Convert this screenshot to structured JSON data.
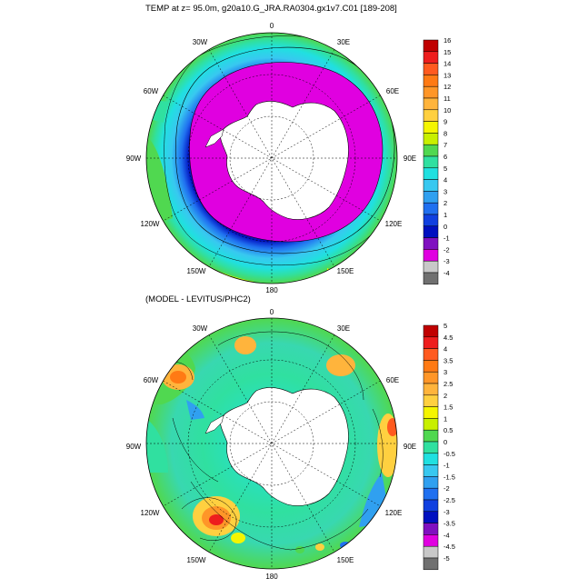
{
  "top_panel": {
    "title": "TEMP at z=  95.0m, g20a10.G_JRA.RA0304.gx1v7.C01 [189-208]",
    "colorbar": {
      "labels": [
        "16",
        "15",
        "14",
        "13",
        "12",
        "11",
        "10",
        "9",
        "8",
        "7",
        "6",
        "5",
        "4",
        "3",
        "2",
        "1",
        "0",
        "-1",
        "-2",
        "-3",
        "-4"
      ],
      "colors": [
        "#c00000",
        "#ee1d1d",
        "#ff5a1f",
        "#ff7a14",
        "#ff9628",
        "#ffb43c",
        "#ffd040",
        "#f5f500",
        "#c8f000",
        "#50d850",
        "#30e0a0",
        "#20e0e0",
        "#38c8f0",
        "#30a0f0",
        "#2070f0",
        "#1040e0",
        "#0010c0",
        "#8010c0",
        "#e000e0",
        "#c8c8c8",
        "#707070"
      ]
    }
  },
  "bottom_panel": {
    "title": "(MODEL - LEVITUS/PHC2)",
    "colorbar": {
      "labels": [
        "5",
        "4.5",
        "4",
        "3.5",
        "3",
        "2.5",
        "2",
        "1.5",
        "1",
        "0.5",
        "0",
        "-0.5",
        "-1",
        "-1.5",
        "-2",
        "-2.5",
        "-3",
        "-3.5",
        "-4",
        "-4.5",
        "-5"
      ],
      "colors": [
        "#c00000",
        "#ee1d1d",
        "#ff5a1f",
        "#ff7a14",
        "#ff9628",
        "#ffb43c",
        "#ffd040",
        "#f5f500",
        "#c8f000",
        "#50d850",
        "#30e0a0",
        "#20e0e0",
        "#38c8f0",
        "#30a0f0",
        "#2070f0",
        "#1040e0",
        "#0010c0",
        "#8010c0",
        "#e000e0",
        "#c8c8c8",
        "#707070"
      ]
    }
  },
  "map_labels": {
    "lon_0": "0",
    "lon_30e": "30E",
    "lon_60e": "60E",
    "lon_90e": "90E",
    "lon_120e": "120E",
    "lon_150e": "150E",
    "lon_180": "180",
    "lon_150w": "150W",
    "lon_120w": "120W",
    "lon_90w": "90W",
    "lon_60w": "60W",
    "lon_30w": "30W"
  }
}
